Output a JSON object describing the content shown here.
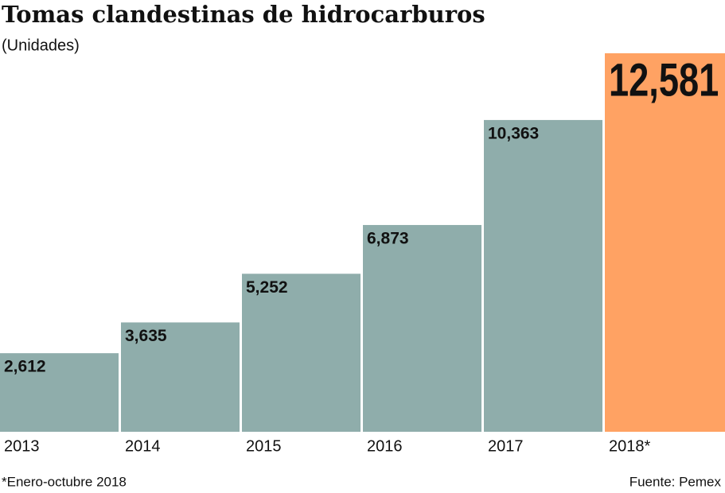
{
  "chart_data": {
    "type": "bar",
    "title": "Tomas clandestinas de hidrocarburos",
    "subtitle": "(Unidades)",
    "categories": [
      "2013",
      "2014",
      "2015",
      "2016",
      "2017",
      "2018*"
    ],
    "values": [
      2612,
      3635,
      5252,
      6873,
      10363,
      12581
    ],
    "value_labels": [
      "2,612",
      "3,635",
      "5,252",
      "6,873",
      "10,363",
      "12,581"
    ],
    "colors": [
      "#8fadab",
      "#8fadab",
      "#8fadab",
      "#8fadab",
      "#8fadab",
      "#ffa263"
    ],
    "note": "*Enero-octubre 2018",
    "source": "Fuente: Pemex"
  }
}
